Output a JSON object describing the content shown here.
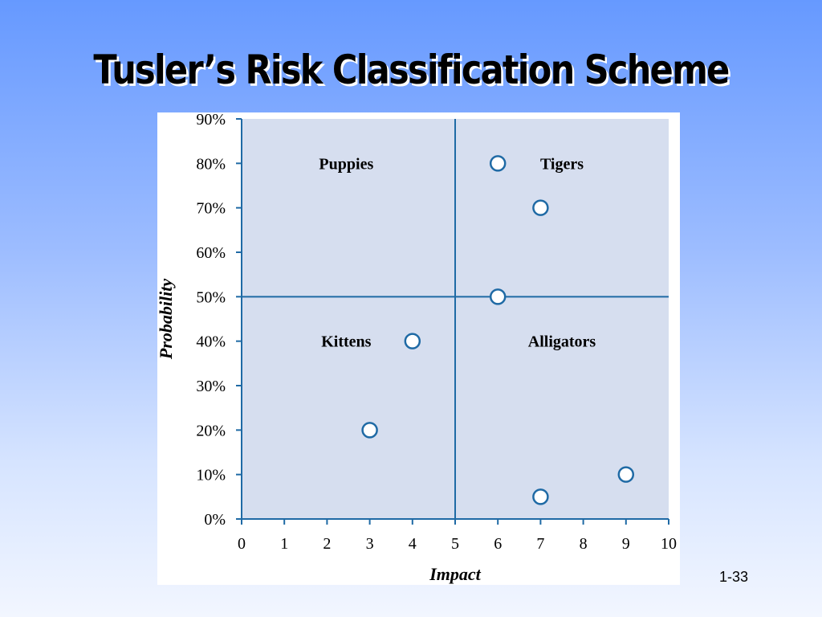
{
  "slide": {
    "title": "Tusler’s Risk Classification Scheme",
    "page_number": "1-33"
  },
  "colors": {
    "plot_background": "#d6deef",
    "axis": "#1f6aa5",
    "marker_stroke": "#1f6aa5",
    "marker_fill": "#ffffff"
  },
  "chart_data": {
    "type": "scatter",
    "title": "",
    "xlabel": "Impact",
    "ylabel": "Probability",
    "xlim": [
      0,
      10
    ],
    "ylim": [
      0,
      90
    ],
    "x_ticks": [
      "0",
      "1",
      "2",
      "3",
      "4",
      "5",
      "6",
      "7",
      "8",
      "9",
      "10"
    ],
    "y_ticks": [
      "0%",
      "10%",
      "20%",
      "30%",
      "40%",
      "50%",
      "60%",
      "70%",
      "80%",
      "90%"
    ],
    "grid": false,
    "divider_lines": {
      "x": 5,
      "y": 50
    },
    "quadrant_labels": [
      {
        "name": "Puppies",
        "x": 2.45,
        "y": 80
      },
      {
        "name": "Tigers",
        "x": 7.5,
        "y": 80
      },
      {
        "name": "Kittens",
        "x": 2.45,
        "y": 40
      },
      {
        "name": "Alligators",
        "x": 7.5,
        "y": 40
      }
    ],
    "points": [
      {
        "x": 6,
        "y": 80
      },
      {
        "x": 7,
        "y": 70
      },
      {
        "x": 6,
        "y": 50
      },
      {
        "x": 4,
        "y": 40
      },
      {
        "x": 3,
        "y": 20
      },
      {
        "x": 9,
        "y": 10
      },
      {
        "x": 7,
        "y": 5
      }
    ]
  }
}
